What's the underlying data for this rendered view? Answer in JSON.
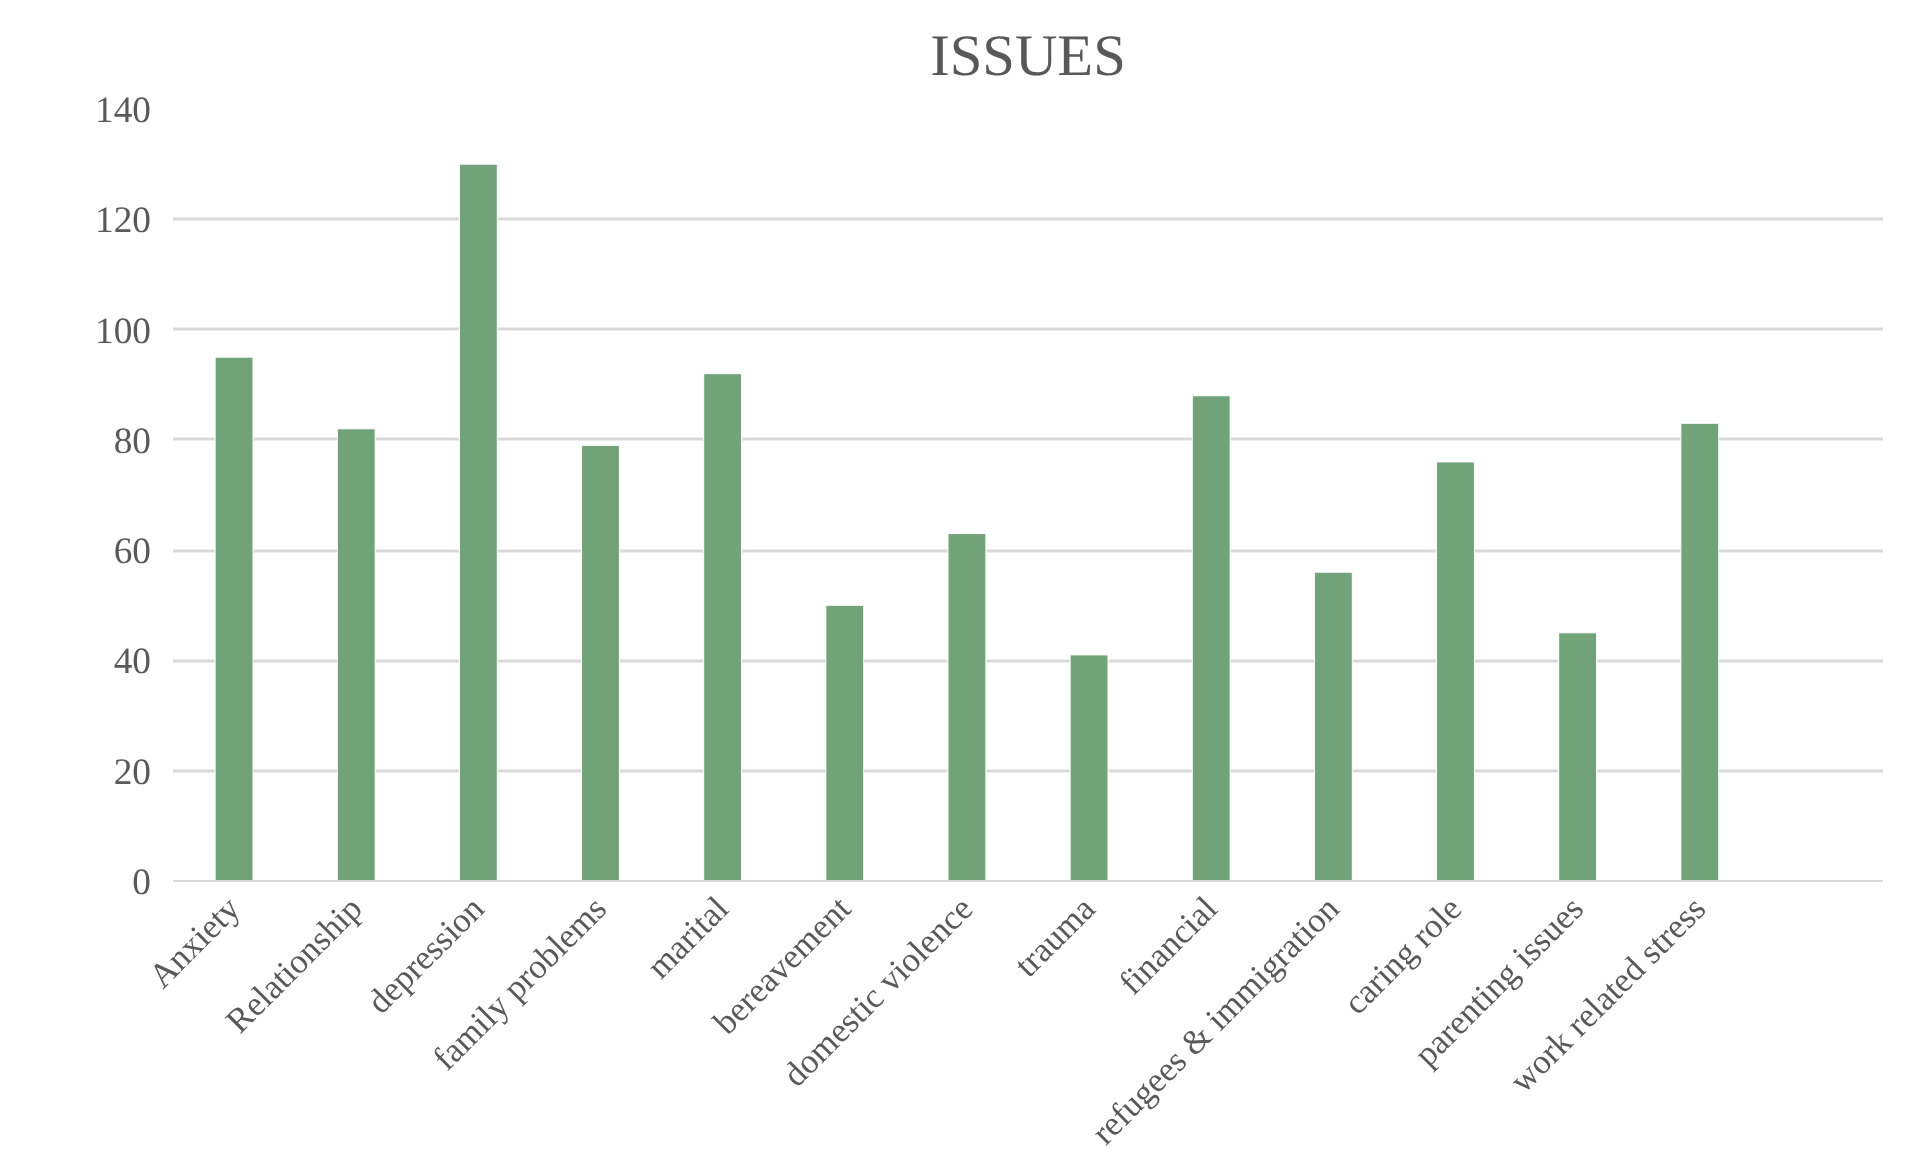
{
  "chart_data": {
    "type": "bar",
    "title": "ISSUES",
    "categories": [
      "Anxiety",
      "Relationship",
      "depression",
      "family problems",
      "marital",
      "bereavement",
      "domestic violence",
      "trauma",
      "financial",
      "refugees & immigration",
      "caring role",
      "parenting issues",
      "work related stress",
      null
    ],
    "values": [
      95,
      82,
      130,
      79,
      92,
      50,
      63,
      41,
      88,
      56,
      76,
      45,
      83,
      null
    ],
    "color": "#72a378",
    "ylim": [
      0,
      140
    ],
    "yticks": [
      0,
      20,
      40,
      60,
      80,
      100,
      120,
      140
    ],
    "grid": "y"
  }
}
